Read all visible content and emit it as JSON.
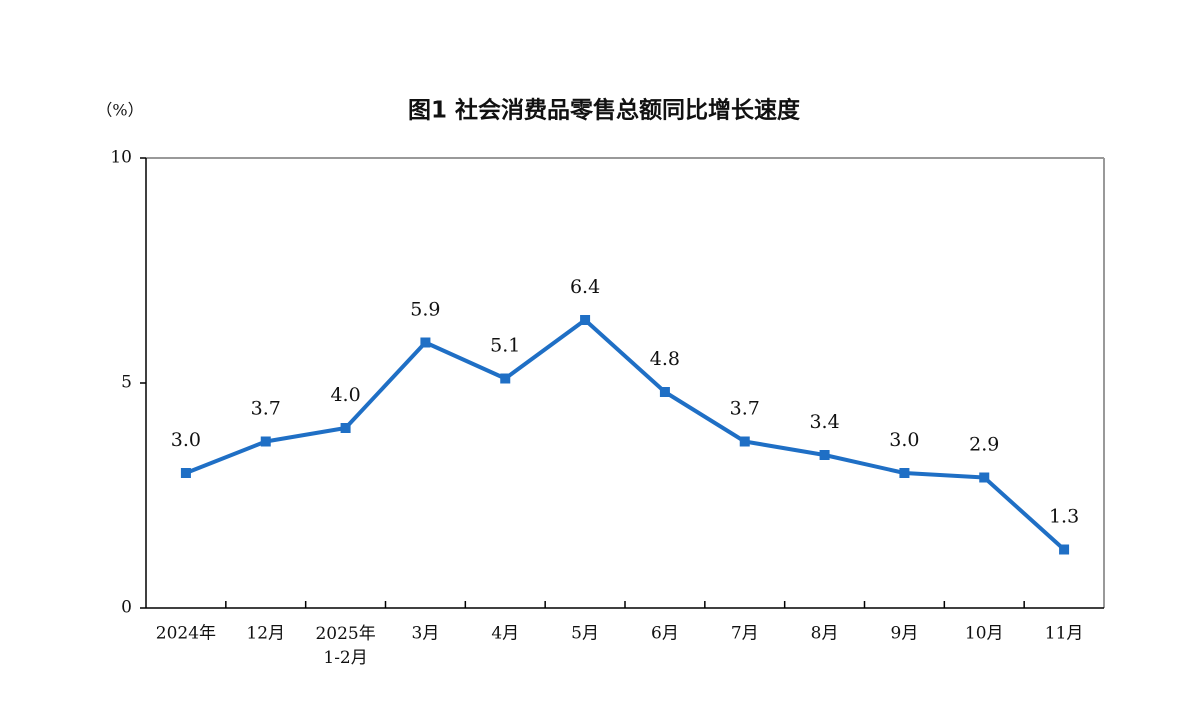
{
  "chart_data": {
    "type": "line",
    "title": "图1 社会消费品零售总额同比增长速度",
    "y_unit": "（%）",
    "categories": [
      "2024年",
      "12月",
      [
        "2025年",
        "1-2月"
      ],
      "3月",
      "4月",
      "5月",
      "6月",
      "7月",
      "8月",
      "9月",
      "10月",
      "11月"
    ],
    "values": [
      3.0,
      3.7,
      4.0,
      5.9,
      5.1,
      6.4,
      4.8,
      3.7,
      3.4,
      3.0,
      2.9,
      1.3
    ],
    "value_labels": [
      "3.0",
      "3.7",
      "4.0",
      "5.9",
      "5.1",
      "6.4",
      "4.8",
      "3.7",
      "3.4",
      "3.0",
      "2.9",
      "1.3"
    ],
    "color": "#1f6fc5",
    "ylim": [
      0,
      10
    ],
    "yticks": [
      0,
      5,
      10
    ]
  }
}
